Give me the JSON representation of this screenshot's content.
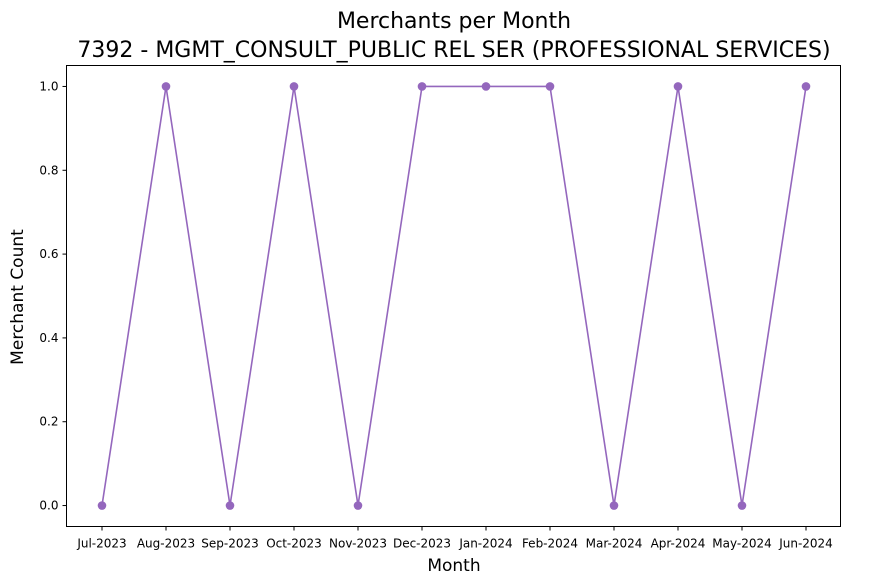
{
  "chart_data": {
    "type": "line",
    "title": "Merchants per Month",
    "subtitle": "7392 - MGMT_CONSULT_PUBLIC REL SER (PROFESSIONAL SERVICES)",
    "xlabel": "Month",
    "ylabel": "Merchant Count",
    "categories": [
      "Jul-2023",
      "Aug-2023",
      "Sep-2023",
      "Oct-2023",
      "Nov-2023",
      "Dec-2023",
      "Jan-2024",
      "Feb-2024",
      "Mar-2024",
      "Apr-2024",
      "May-2024",
      "Jun-2024"
    ],
    "series": [
      {
        "values": [
          0,
          1,
          0,
          1,
          0,
          1,
          1,
          1,
          0,
          1,
          0,
          1
        ],
        "color": "#9467bd",
        "marker": "circle"
      }
    ],
    "yticks": [
      "0.0",
      "0.2",
      "0.4",
      "0.6",
      "0.8",
      "1.0"
    ],
    "ylim": [
      -0.05,
      1.05
    ],
    "grid": false,
    "legend": "none"
  }
}
